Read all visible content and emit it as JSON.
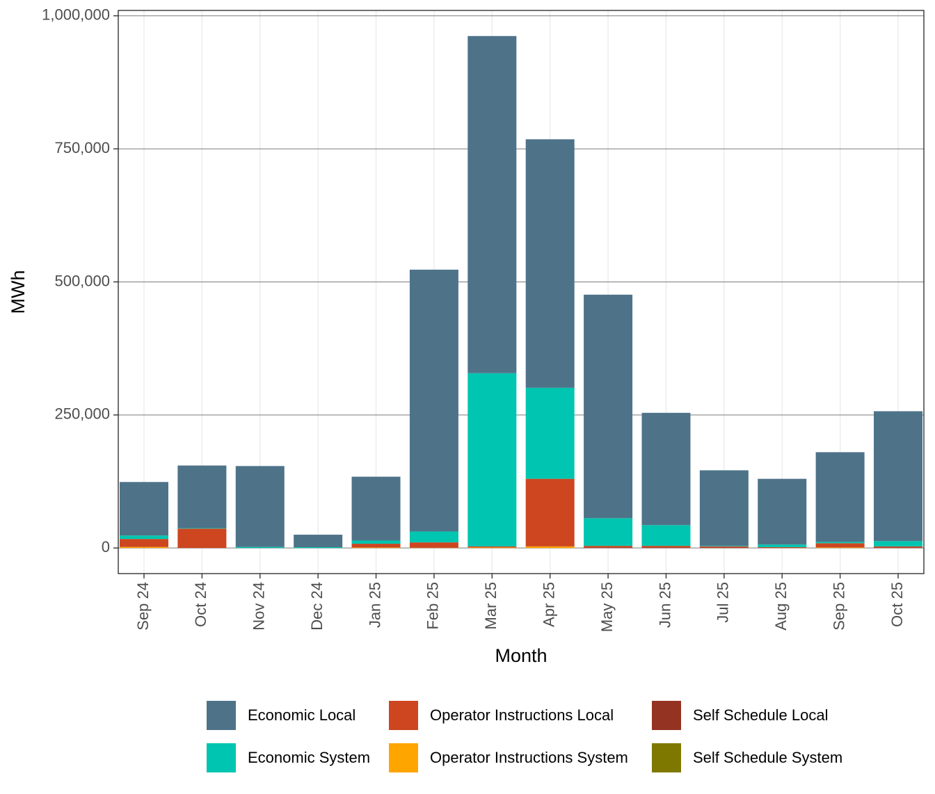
{
  "chart_data": {
    "type": "bar",
    "stacked": true,
    "x_label": "Month",
    "y_label": "MWh",
    "categories": [
      "Sep 24",
      "Oct 24",
      "Nov 24",
      "Dec 24",
      "Jan 25",
      "Feb 25",
      "Mar 25",
      "Apr 25",
      "May 25",
      "Jun 25",
      "Jul 25",
      "Aug 25",
      "Sep 25",
      "Oct 25"
    ],
    "series": [
      {
        "name": "Economic Local",
        "color": "#4e7389",
        "values": [
          100500,
          117500,
          152000,
          23500,
          120000,
          492000,
          633500,
          467000,
          420000,
          211000,
          142000,
          123500,
          168500,
          244000
        ]
      },
      {
        "name": "Economic System",
        "color": "#00c5b0",
        "values": [
          6500,
          1000,
          2000,
          1500,
          6000,
          20500,
          325500,
          171000,
          52000,
          39000,
          1000,
          5000,
          2500,
          10000
        ]
      },
      {
        "name": "Operator Instructions Local",
        "color": "#cd4620",
        "values": [
          15000,
          36500,
          0,
          0,
          7000,
          10000,
          2000,
          127000,
          3000,
          3000,
          2000,
          1500,
          8000,
          2000
        ]
      },
      {
        "name": "Operator Instructions System",
        "color": "#ffa500",
        "values": [
          2000,
          0,
          0,
          0,
          1000,
          500,
          1000,
          3000,
          0,
          0,
          0,
          0,
          1000,
          0
        ]
      },
      {
        "name": "Self Schedule Local",
        "color": "#943322",
        "values": [
          0,
          0,
          0,
          0,
          0,
          0,
          0,
          0,
          1000,
          1000,
          1000,
          0,
          0,
          1000
        ]
      },
      {
        "name": "Self Schedule System",
        "color": "#7f7800",
        "values": [
          0,
          0,
          0,
          0,
          0,
          0,
          0,
          0,
          0,
          0,
          0,
          0,
          0,
          0
        ]
      }
    ],
    "ylim": [
      -48100,
      1010100
    ],
    "yticks": [
      0,
      {
        "value": 250000,
        "label": "250,000"
      },
      {
        "value": 500000,
        "label": "500,000"
      },
      {
        "value": 750000,
        "label": "750,000"
      },
      {
        "value": 1000000,
        "label": "1,000,000"
      }
    ],
    "grid": true,
    "legend_position": "bottom"
  }
}
